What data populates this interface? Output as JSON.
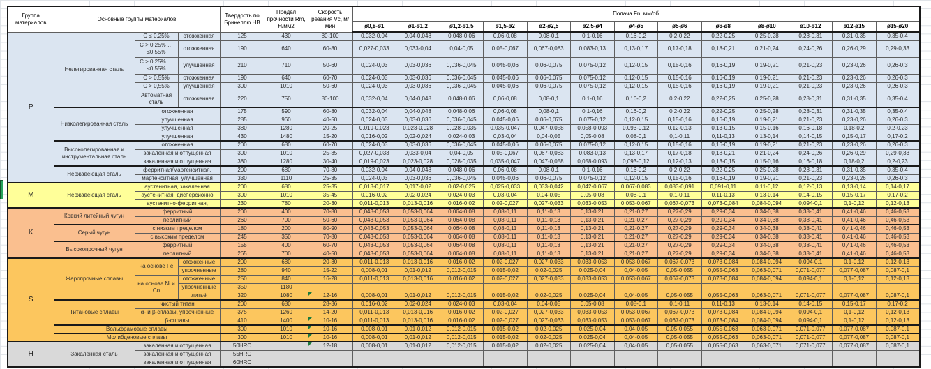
{
  "colors": {
    "group_p": "#dbe5f1",
    "group_m": "#ffff99",
    "group_k": "#fabf8f",
    "group_s": "#fcc65e",
    "group_h": "#d9d9d9",
    "comment_marker": "#1e7a3c",
    "side_marker": "#27a35d"
  },
  "table": {
    "header": {
      "group": "Группа материалов",
      "main": "Основные группы материалов",
      "hardness": "Твердость по Бринеллю НВ",
      "strength": "Предел прочности Rm, Н/мм2",
      "speed": "Скорость резания Vc, м/мин",
      "feed": "Подача Fn, мм/об",
      "diameters": [
        "ø0,8-ø1",
        "ø1-ø1,2",
        "ø1,2-ø1,5",
        "ø1,5-ø2",
        "ø2-ø2,5",
        "ø2,5-ø4",
        "ø4-ø5",
        "ø5-ø6",
        "ø6-ø8",
        "ø8-ø10",
        "ø10-ø12",
        "ø12-ø15",
        "ø15-ø20"
      ]
    },
    "patterns": {
      "A": [
        "0,032-0,04",
        "0,04-0,048",
        "0,048-0,06",
        "0,06-0,08",
        "0,08-0,1",
        "0,1-0,16",
        "0,16-0,2",
        "0,2-0,22",
        "0,22-0,25",
        "0,25-0,28",
        "0,28-0,31",
        "0,31-0,35",
        "0,35-0,4"
      ],
      "B": [
        "0,027-0,033",
        "0,033-0,04",
        "0,04-0,05",
        "0,05-0,067",
        "0,067-0,083",
        "0,083-0,13",
        "0,13-0,17",
        "0,17-0,18",
        "0,18-0,21",
        "0,21-0,24",
        "0,24-0,26",
        "0,26-0,29",
        "0,29-0,33"
      ],
      "C": [
        "0,024-0,03",
        "0,03-0,036",
        "0,036-0,045",
        "0,045-0,06",
        "0,06-0,075",
        "0,075-0,12",
        "0,12-0,15",
        "0,15-0,16",
        "0,16-0,19",
        "0,19-0,21",
        "0,21-0,23",
        "0,23-0,26",
        "0,26-0,3"
      ],
      "D": [
        "0,019-0,023",
        "0,023-0,028",
        "0,028-0,035",
        "0,035-0,047",
        "0,047-0,058",
        "0,058-0,093",
        "0,093-0,12",
        "0,12-0,13",
        "0,13-0,15",
        "0,15-0,16",
        "0,16-0,18",
        "0,18-0,2",
        "0,2-0,23"
      ],
      "E": [
        "0,016-0,02",
        "0,02-0,024",
        "0,024-0,03",
        "0,03-0,04",
        "0,04-0,05",
        "0,05-0,08",
        "0,08-0,1",
        "0,1-0,11",
        "0,11-0,13",
        "0,13-0,14",
        "0,14-0,15",
        "0,15-0,17",
        "0,17-0,2"
      ],
      "F": [
        "0,013-0,017",
        "0,017-0,02",
        "0,02-0,025",
        "0,025-0,033",
        "0,033-0,042",
        "0,042-0,067",
        "0,067-0,083",
        "0,083-0,091",
        "0,091-0,11",
        "0,11-0,12",
        "0,12-0,13",
        "0,13-0,14",
        "0,14-0,17"
      ],
      "G": [
        "0,011-0,013",
        "0,013-0,016",
        "0,016-0,02",
        "0,02-0,027",
        "0,027-0,033",
        "0,033-0,053",
        "0,053-0,067",
        "0,067-0,073",
        "0,073-0,084",
        "0,084-0,094",
        "0,094-0,1",
        "0,1-0,12",
        "0,12-0,13"
      ],
      "K": [
        "0,043-0,053",
        "0,053-0,064",
        "0,064-0,08",
        "0,08-0,11",
        "0,11-0,13",
        "0,13-0,21",
        "0,21-0,27",
        "0,27-0,29",
        "0,29-0,34",
        "0,34-0,38",
        "0,38-0,41",
        "0,41-0,46",
        "0,46-0,53"
      ],
      "J": [
        "0,008-0,01",
        "0,01-0,012",
        "0,012-0,015",
        "0,015-0,02",
        "0,02-0,025",
        "0,025-0,04",
        "0,04-0,05",
        "0,05-0,055",
        "0,055-0,063",
        "0,063-0,071",
        "0,071-0,077",
        "0,077-0,087",
        "0,087-0,1"
      ],
      "blank": [
        "",
        "",
        "",
        "",
        "",
        "",
        "",
        "",
        "",
        "",
        "",
        "",
        ""
      ]
    },
    "rows": [
      {
        "cls": "p",
        "g": {
          "t": "P",
          "rs": 15
        },
        "c": [
          {
            "t": "Нелегированная сталь",
            "rs": 6
          },
          {
            "t": "С ≤ 0,25%"
          },
          {
            "t": "отожженная"
          }
        ],
        "v": [
          "125",
          "430",
          "80-100"
        ],
        "f": "A"
      },
      {
        "cls": "p",
        "tall": true,
        "c": [
          {
            "t": "С > 0,25% … ≤0,55%"
          },
          {
            "t": "отожженная"
          }
        ],
        "v": [
          "190",
          "640",
          "60-80"
        ],
        "f": "B"
      },
      {
        "cls": "p",
        "tall": true,
        "c": [
          {
            "t": "С > 0,25% … ≤0,55%"
          },
          {
            "t": "улучшенная"
          }
        ],
        "v": [
          "210",
          "710",
          "50-60"
        ],
        "f": "C"
      },
      {
        "cls": "p",
        "c": [
          {
            "t": "С > 0,55%"
          },
          {
            "t": "отожженная"
          }
        ],
        "v": [
          "190",
          "640",
          "60-70"
        ],
        "f": "C"
      },
      {
        "cls": "p",
        "c": [
          {
            "t": "С > 0,55%"
          },
          {
            "t": "улучшенная"
          }
        ],
        "v": [
          "300",
          "1010",
          "50-60"
        ],
        "f": "C"
      },
      {
        "cls": "p",
        "tall": true,
        "c": [
          {
            "t": "Автоматная сталь"
          },
          {
            "t": "отожженная"
          }
        ],
        "v": [
          "220",
          "750",
          "80-100"
        ],
        "f": "A"
      },
      {
        "cls": "p",
        "first": true,
        "c": [
          {
            "t": "Низколегированная сталь",
            "rs": 4
          },
          {
            "t": "отожженная",
            "cs": 2
          }
        ],
        "v": [
          "175",
          "590",
          "60-80"
        ],
        "f": "A"
      },
      {
        "cls": "p",
        "c": [
          {
            "t": "улучшенная",
            "cs": 2
          }
        ],
        "v": [
          "285",
          "960",
          "40-50"
        ],
        "f": "C"
      },
      {
        "cls": "p",
        "c": [
          {
            "t": "улучшенная",
            "cs": 2
          }
        ],
        "v": [
          "380",
          "1280",
          "20-25"
        ],
        "f": "D"
      },
      {
        "cls": "p",
        "c": [
          {
            "t": "улучшенная",
            "cs": 2
          }
        ],
        "v": [
          "430",
          "1480",
          "15-20"
        ],
        "f": "E"
      },
      {
        "cls": "p",
        "first": true,
        "c": [
          {
            "t": "Высоколегированная и инструментальная сталь",
            "rs": 3
          },
          {
            "t": "отожженная",
            "cs": 2
          }
        ],
        "v": [
          "200",
          "680",
          "60-70"
        ],
        "f": "C"
      },
      {
        "cls": "p",
        "c": [
          {
            "t": "закаленная и отпущенная",
            "cs": 2
          }
        ],
        "v": [
          "300",
          "1010",
          "25-35"
        ],
        "f": "B"
      },
      {
        "cls": "p",
        "c": [
          {
            "t": "закаленная и отпущенная",
            "cs": 2
          }
        ],
        "v": [
          "380",
          "1280",
          "30-40"
        ],
        "f": "D"
      },
      {
        "cls": "p",
        "first": true,
        "c": [
          {
            "t": "Нержавеющая сталь",
            "rs": 2
          },
          {
            "t": "ферритная/мартенситная,",
            "cs": 2
          }
        ],
        "v": [
          "200",
          "680",
          "70-80"
        ],
        "f": "A"
      },
      {
        "cls": "p",
        "c": [
          {
            "t": "мартенситная, улучшенная",
            "cs": 2
          }
        ],
        "v": [
          "330",
          "1110",
          "25-35"
        ],
        "f": "C"
      },
      {
        "cls": "m",
        "first": true,
        "g": {
          "t": "M",
          "rs": 3
        },
        "c": [
          {
            "t": "Нержавеющая сталь",
            "rs": 3
          },
          {
            "t": "аустенитная, закаленная",
            "cs": 2
          }
        ],
        "v": [
          "200",
          "680",
          "25-35"
        ],
        "f": "F"
      },
      {
        "cls": "m",
        "c": [
          {
            "t": "аустенитная, дисперсионно",
            "cs": 2
          }
        ],
        "v": [
          "300",
          "1010",
          "35-45"
        ],
        "f": "E"
      },
      {
        "cls": "m",
        "c": [
          {
            "t": "аустенитно-ферритная,",
            "cs": 2
          }
        ],
        "v": [
          "230",
          "780",
          "20-30"
        ],
        "f": "G"
      },
      {
        "cls": "k",
        "first": true,
        "g": {
          "t": "K",
          "rs": 6
        },
        "c": [
          {
            "t": "Ковкий литейный чугун",
            "rs": 2
          },
          {
            "t": "ферритный",
            "cs": 2
          }
        ],
        "v": [
          "200",
          "400",
          "70-80"
        ],
        "f": "K"
      },
      {
        "cls": "k",
        "c": [
          {
            "t": "перлитный",
            "cs": 2
          }
        ],
        "v": [
          "260",
          "700",
          "50-60"
        ],
        "f": "K"
      },
      {
        "cls": "k",
        "first": true,
        "c": [
          {
            "t": "Серый чугун",
            "rs": 2
          },
          {
            "t": "с низким пределом",
            "cs": 2
          }
        ],
        "v": [
          "180",
          "200",
          "80-90"
        ],
        "f": "K"
      },
      {
        "cls": "k",
        "c": [
          {
            "t": "с высоким пределом",
            "cs": 2
          }
        ],
        "v": [
          "245",
          "350",
          "70-80"
        ],
        "f": "K"
      },
      {
        "cls": "k",
        "first": true,
        "c": [
          {
            "t": "Высокопрочный чугун",
            "rs": 2
          },
          {
            "t": "ферритный",
            "cs": 2
          }
        ],
        "v": [
          "155",
          "400",
          "60-70"
        ],
        "f": "K"
      },
      {
        "cls": "k",
        "c": [
          {
            "t": "перлитный",
            "cs": 2
          }
        ],
        "v": [
          "265",
          "700",
          "40-50"
        ],
        "f": "K"
      },
      {
        "cls": "s",
        "first": true,
        "g": {
          "t": "S",
          "rs": 10
        },
        "c": [
          {
            "t": "Жаропрочные сплавы",
            "rs": 5
          },
          {
            "t": "на основе Fe",
            "rs": 2
          },
          {
            "t": "отожженные"
          }
        ],
        "v": [
          "200",
          "680",
          "20-30"
        ],
        "f": "G"
      },
      {
        "cls": "s",
        "c": [
          {
            "t": "упрочненные"
          }
        ],
        "v": [
          "280",
          "940",
          "15-22"
        ],
        "f": "J"
      },
      {
        "cls": "s",
        "c": [
          {
            "t": "на основе Ni и Со",
            "rs": 3
          },
          {
            "t": "отожженные"
          }
        ],
        "v": [
          "250",
          "840",
          "16-28"
        ],
        "f": "G"
      },
      {
        "cls": "s",
        "c": [
          {
            "t": "упрочненные"
          }
        ],
        "v": [
          "350",
          "1180",
          ""
        ],
        "f": "blank"
      },
      {
        "cls": "s",
        "c": [
          {
            "t": "литьё"
          }
        ],
        "v": [
          "320",
          "1080",
          "12-16"
        ],
        "n": true,
        "f": "J"
      },
      {
        "cls": "s",
        "first": true,
        "c": [
          {
            "t": "Титановые сплавы",
            "rs": 3
          },
          {
            "t": "чистый титан",
            "cs": 2
          }
        ],
        "v": [
          "200",
          "680",
          "28-36"
        ],
        "f": "E"
      },
      {
        "cls": "s",
        "c": [
          {
            "t": "α- и β-сплавы, упрочненные",
            "cs": 2
          }
        ],
        "v": [
          "375",
          "1260",
          "14-20"
        ],
        "f": "G"
      },
      {
        "cls": "s",
        "c": [
          {
            "t": "β-сплавы",
            "cs": 2
          }
        ],
        "v": [
          "410",
          "1400",
          "10-16"
        ],
        "n": true,
        "f": "G"
      },
      {
        "cls": "s",
        "first": true,
        "c": [
          {
            "t": "Вольфрамовые сплавы",
            "cs": 3
          }
        ],
        "v": [
          "300",
          "1010",
          "10-16"
        ],
        "n": true,
        "f": "J"
      },
      {
        "cls": "s",
        "first": true,
        "c": [
          {
            "t": "Молибденовые сплавы",
            "cs": 3
          }
        ],
        "v": [
          "300",
          "1010",
          "10-16"
        ],
        "n": true,
        "f": "J"
      },
      {
        "cls": "h",
        "first": true,
        "g": {
          "t": "H",
          "rs": 3
        },
        "c": [
          {
            "t": "Закаленная сталь",
            "rs": 3
          },
          {
            "t": "закаленная и отпущенная",
            "cs": 2
          }
        ],
        "v": [
          "50HRC",
          "",
          "12-18"
        ],
        "n": true,
        "f": "J"
      },
      {
        "cls": "h",
        "c": [
          {
            "t": "закаленная и отпущенная",
            "cs": 2
          }
        ],
        "v": [
          "55HRC",
          "",
          ""
        ],
        "f": "blank"
      },
      {
        "cls": "h",
        "c": [
          {
            "t": "закаленная и отпущенная",
            "cs": 2
          }
        ],
        "v": [
          "60HRC",
          "",
          ""
        ],
        "f": "blank"
      }
    ]
  }
}
